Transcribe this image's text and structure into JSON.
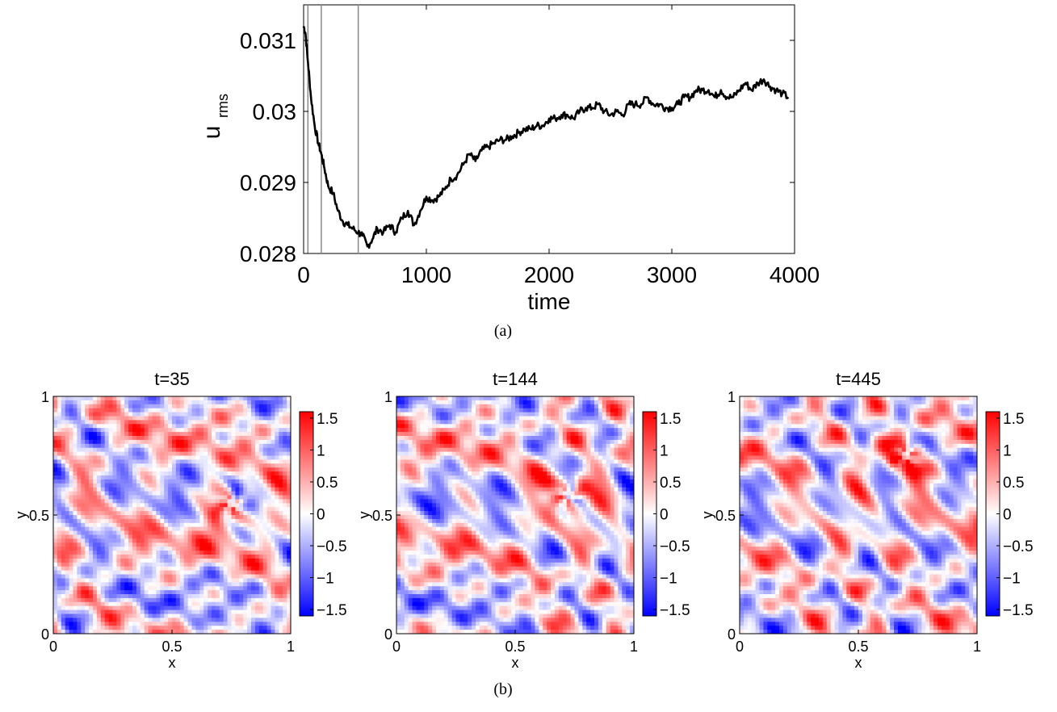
{
  "panel_a": {
    "caption": "(a)",
    "chart_data": {
      "type": "line",
      "title": "",
      "xlabel": "time",
      "ylabel": "u",
      "ylabel_sub": "rms",
      "xlim": [
        0,
        4000
      ],
      "ylim": [
        0.028,
        0.0315
      ],
      "xticks": [
        0,
        1000,
        2000,
        3000,
        4000
      ],
      "xtick_labels": [
        "0",
        "1000",
        "2000",
        "3000",
        "4000"
      ],
      "yticks": [
        0.028,
        0.029,
        0.03,
        0.031
      ],
      "ytick_labels": [
        "0.028",
        "0.029",
        "0.03",
        "0.031"
      ],
      "vertical_markers": [
        35,
        144,
        445
      ],
      "grid": false,
      "series": [
        {
          "x": [
            0,
            15,
            35,
            60,
            90,
            120,
            144,
            170,
            200,
            240,
            280,
            320,
            360,
            400,
            445,
            480,
            520,
            560,
            600,
            650,
            700,
            750,
            800,
            850,
            900,
            950,
            1000,
            1050,
            1100,
            1150,
            1200,
            1250,
            1300,
            1350,
            1400,
            1450,
            1500,
            1550,
            1600,
            1650,
            1700,
            1750,
            1800,
            1850,
            1900,
            1950,
            2000,
            2050,
            2100,
            2150,
            2200,
            2250,
            2300,
            2350,
            2400,
            2450,
            2500,
            2550,
            2600,
            2650,
            2700,
            2750,
            2800,
            2850,
            2900,
            2950,
            3000,
            3050,
            3100,
            3150,
            3200,
            3250,
            3300,
            3350,
            3400,
            3450,
            3500,
            3550,
            3600,
            3650,
            3700,
            3750,
            3800,
            3850,
            3900,
            3950
          ],
          "y": [
            0.0312,
            0.0311,
            0.0307,
            0.0302,
            0.0298,
            0.02955,
            0.0294,
            0.0292,
            0.02895,
            0.02885,
            0.0286,
            0.02845,
            0.0284,
            0.02835,
            0.0283,
            0.02825,
            0.0281,
            0.0282,
            0.02835,
            0.0283,
            0.0284,
            0.0283,
            0.0285,
            0.0286,
            0.0284,
            0.0286,
            0.0288,
            0.02875,
            0.0288,
            0.0289,
            0.02905,
            0.0291,
            0.02925,
            0.0294,
            0.0293,
            0.02945,
            0.0295,
            0.02955,
            0.0296,
            0.0296,
            0.02965,
            0.0297,
            0.02975,
            0.02975,
            0.0298,
            0.0298,
            0.0299,
            0.0299,
            0.02995,
            0.02995,
            0.0299,
            0.03,
            0.03005,
            0.03005,
            0.0301,
            0.03,
            0.02995,
            0.03,
            0.02995,
            0.0301,
            0.0301,
            0.0301,
            0.0302,
            0.0301,
            0.0301,
            0.03005,
            0.03005,
            0.0301,
            0.0302,
            0.0302,
            0.0303,
            0.0303,
            0.0303,
            0.0302,
            0.0303,
            0.0302,
            0.0302,
            0.0303,
            0.0304,
            0.0303,
            0.0304,
            0.03045,
            0.03035,
            0.0303,
            0.03025,
            0.0302
          ]
        }
      ]
    }
  },
  "panel_b": {
    "caption": "(b)",
    "colorbar": {
      "ticks": [
        1.5,
        1,
        0.5,
        0,
        -0.5,
        -1,
        -1.5
      ],
      "tick_labels": [
        "1.5",
        "1",
        "0.5",
        "0",
        "−0.5",
        "−1",
        "−1.5"
      ],
      "range": [
        -1.6,
        1.6
      ],
      "colors": {
        "low": "#0000ff",
        "mid": "#ffffff",
        "high": "#ff0000"
      }
    },
    "maps": [
      {
        "title": "t=35",
        "xlabel": "x",
        "ylabel": "y",
        "xtick_labels": [
          "0",
          "0.5",
          "1"
        ],
        "ytick_labels": [
          "0",
          "0.5",
          "1"
        ],
        "vortex": [
          0.75,
          0.55
        ]
      },
      {
        "title": "t=144",
        "xlabel": "x",
        "ylabel": "y",
        "xtick_labels": [
          "0",
          "0.5",
          "1"
        ],
        "ytick_labels": [
          "0",
          "0.5",
          "1"
        ],
        "vortex": [
          0.72,
          0.58
        ]
      },
      {
        "title": "t=445",
        "xlabel": "x",
        "ylabel": "y",
        "xtick_labels": [
          "0",
          "0.5",
          "1"
        ],
        "ytick_labels": [
          "0",
          "0.5",
          "1"
        ],
        "vortex": [
          0.7,
          0.75
        ]
      }
    ]
  }
}
